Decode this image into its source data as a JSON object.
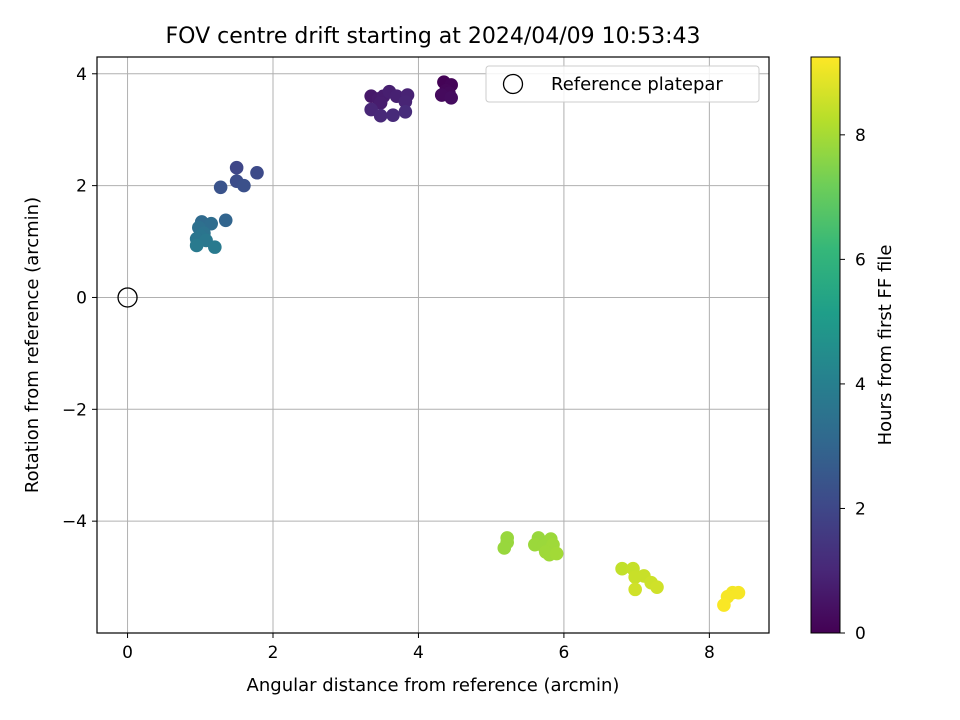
{
  "chart_data": {
    "type": "scatter",
    "title": "FOV centre drift starting at 2024/04/09 10:53:43",
    "xlabel": "Angular distance from reference (arcmin)",
    "ylabel": "Rotation from reference (arcmin)",
    "xlim": [
      -0.42,
      8.82
    ],
    "ylim": [
      -6.0,
      4.3
    ],
    "xticks": [
      0,
      2,
      4,
      6,
      8
    ],
    "xtick_labels": [
      "0",
      "2",
      "4",
      "6",
      "8"
    ],
    "yticks": [
      4,
      2,
      0,
      -2,
      -4
    ],
    "ytick_labels": [
      "4",
      "2",
      "0",
      "−2",
      "−4"
    ],
    "grid": true,
    "legend": {
      "position": "top-right",
      "entries": [
        "Reference platepar"
      ]
    },
    "reference_point": {
      "x": 0,
      "y": 0,
      "label": "Reference platepar"
    },
    "colorbar": {
      "label": "Hours from first FF file",
      "range": [
        0,
        9.25
      ],
      "ticks": [
        0,
        2,
        4,
        6,
        8
      ],
      "tick_labels": [
        "0",
        "2",
        "4",
        "6",
        "8"
      ],
      "colormap": [
        "#440154",
        "#482878",
        "#3e4989",
        "#31688e",
        "#26828e",
        "#1f9e89",
        "#35b779",
        "#6ece58",
        "#b5de2b",
        "#fde725"
      ]
    },
    "points": [
      {
        "x": 4.35,
        "y": 3.85,
        "hours": 0.05
      },
      {
        "x": 4.45,
        "y": 3.8,
        "hours": 0.1
      },
      {
        "x": 4.38,
        "y": 3.7,
        "hours": 0.15
      },
      {
        "x": 4.42,
        "y": 3.65,
        "hours": 0.2
      },
      {
        "x": 4.32,
        "y": 3.62,
        "hours": 0.25
      },
      {
        "x": 4.45,
        "y": 3.57,
        "hours": 0.3
      },
      {
        "x": 3.35,
        "y": 3.6,
        "hours": 0.6
      },
      {
        "x": 3.45,
        "y": 3.55,
        "hours": 0.65
      },
      {
        "x": 3.52,
        "y": 3.6,
        "hours": 0.7
      },
      {
        "x": 3.48,
        "y": 3.48,
        "hours": 0.75
      },
      {
        "x": 3.6,
        "y": 3.68,
        "hours": 0.8
      },
      {
        "x": 3.7,
        "y": 3.6,
        "hours": 0.85
      },
      {
        "x": 3.85,
        "y": 3.62,
        "hours": 0.9
      },
      {
        "x": 3.82,
        "y": 3.5,
        "hours": 0.95
      },
      {
        "x": 3.35,
        "y": 3.36,
        "hours": 1.0
      },
      {
        "x": 3.48,
        "y": 3.25,
        "hours": 1.05
      },
      {
        "x": 3.65,
        "y": 3.26,
        "hours": 1.1
      },
      {
        "x": 3.82,
        "y": 3.32,
        "hours": 1.15
      },
      {
        "x": 1.5,
        "y": 2.32,
        "hours": 2.0
      },
      {
        "x": 1.78,
        "y": 2.23,
        "hours": 2.1
      },
      {
        "x": 1.5,
        "y": 2.08,
        "hours": 2.2
      },
      {
        "x": 1.6,
        "y": 2.0,
        "hours": 2.3
      },
      {
        "x": 1.28,
        "y": 1.97,
        "hours": 2.4
      },
      {
        "x": 1.35,
        "y": 1.38,
        "hours": 3.0
      },
      {
        "x": 1.02,
        "y": 1.35,
        "hours": 3.2
      },
      {
        "x": 1.15,
        "y": 1.32,
        "hours": 3.3
      },
      {
        "x": 0.98,
        "y": 1.25,
        "hours": 3.4
      },
      {
        "x": 1.05,
        "y": 1.15,
        "hours": 3.5
      },
      {
        "x": 1.0,
        "y": 1.1,
        "hours": 3.6
      },
      {
        "x": 0.95,
        "y": 1.05,
        "hours": 3.6
      },
      {
        "x": 1.08,
        "y": 1.02,
        "hours": 3.7
      },
      {
        "x": 0.95,
        "y": 0.93,
        "hours": 3.8
      },
      {
        "x": 1.2,
        "y": 0.9,
        "hours": 3.8
      },
      {
        "x": 5.22,
        "y": -4.3,
        "hours": 7.8
      },
      {
        "x": 5.22,
        "y": -4.38,
        "hours": 7.8
      },
      {
        "x": 5.18,
        "y": -4.48,
        "hours": 7.8
      },
      {
        "x": 5.65,
        "y": -4.3,
        "hours": 7.8
      },
      {
        "x": 5.82,
        "y": -4.32,
        "hours": 7.85
      },
      {
        "x": 5.6,
        "y": -4.42,
        "hours": 7.85
      },
      {
        "x": 5.72,
        "y": -4.45,
        "hours": 7.85
      },
      {
        "x": 5.85,
        "y": -4.42,
        "hours": 7.9
      },
      {
        "x": 5.75,
        "y": -4.55,
        "hours": 7.9
      },
      {
        "x": 5.8,
        "y": -4.6,
        "hours": 7.9
      },
      {
        "x": 5.9,
        "y": -4.58,
        "hours": 7.95
      },
      {
        "x": 6.8,
        "y": -4.85,
        "hours": 8.4
      },
      {
        "x": 6.95,
        "y": -4.85,
        "hours": 8.45
      },
      {
        "x": 7.1,
        "y": -4.98,
        "hours": 8.5
      },
      {
        "x": 6.98,
        "y": -5.0,
        "hours": 8.5
      },
      {
        "x": 7.2,
        "y": -5.1,
        "hours": 8.55
      },
      {
        "x": 7.28,
        "y": -5.18,
        "hours": 8.6
      },
      {
        "x": 6.98,
        "y": -5.22,
        "hours": 8.6
      },
      {
        "x": 8.32,
        "y": -5.28,
        "hours": 9.1
      },
      {
        "x": 8.4,
        "y": -5.28,
        "hours": 9.15
      },
      {
        "x": 8.25,
        "y": -5.35,
        "hours": 9.15
      },
      {
        "x": 8.2,
        "y": -5.5,
        "hours": 9.2
      }
    ]
  }
}
